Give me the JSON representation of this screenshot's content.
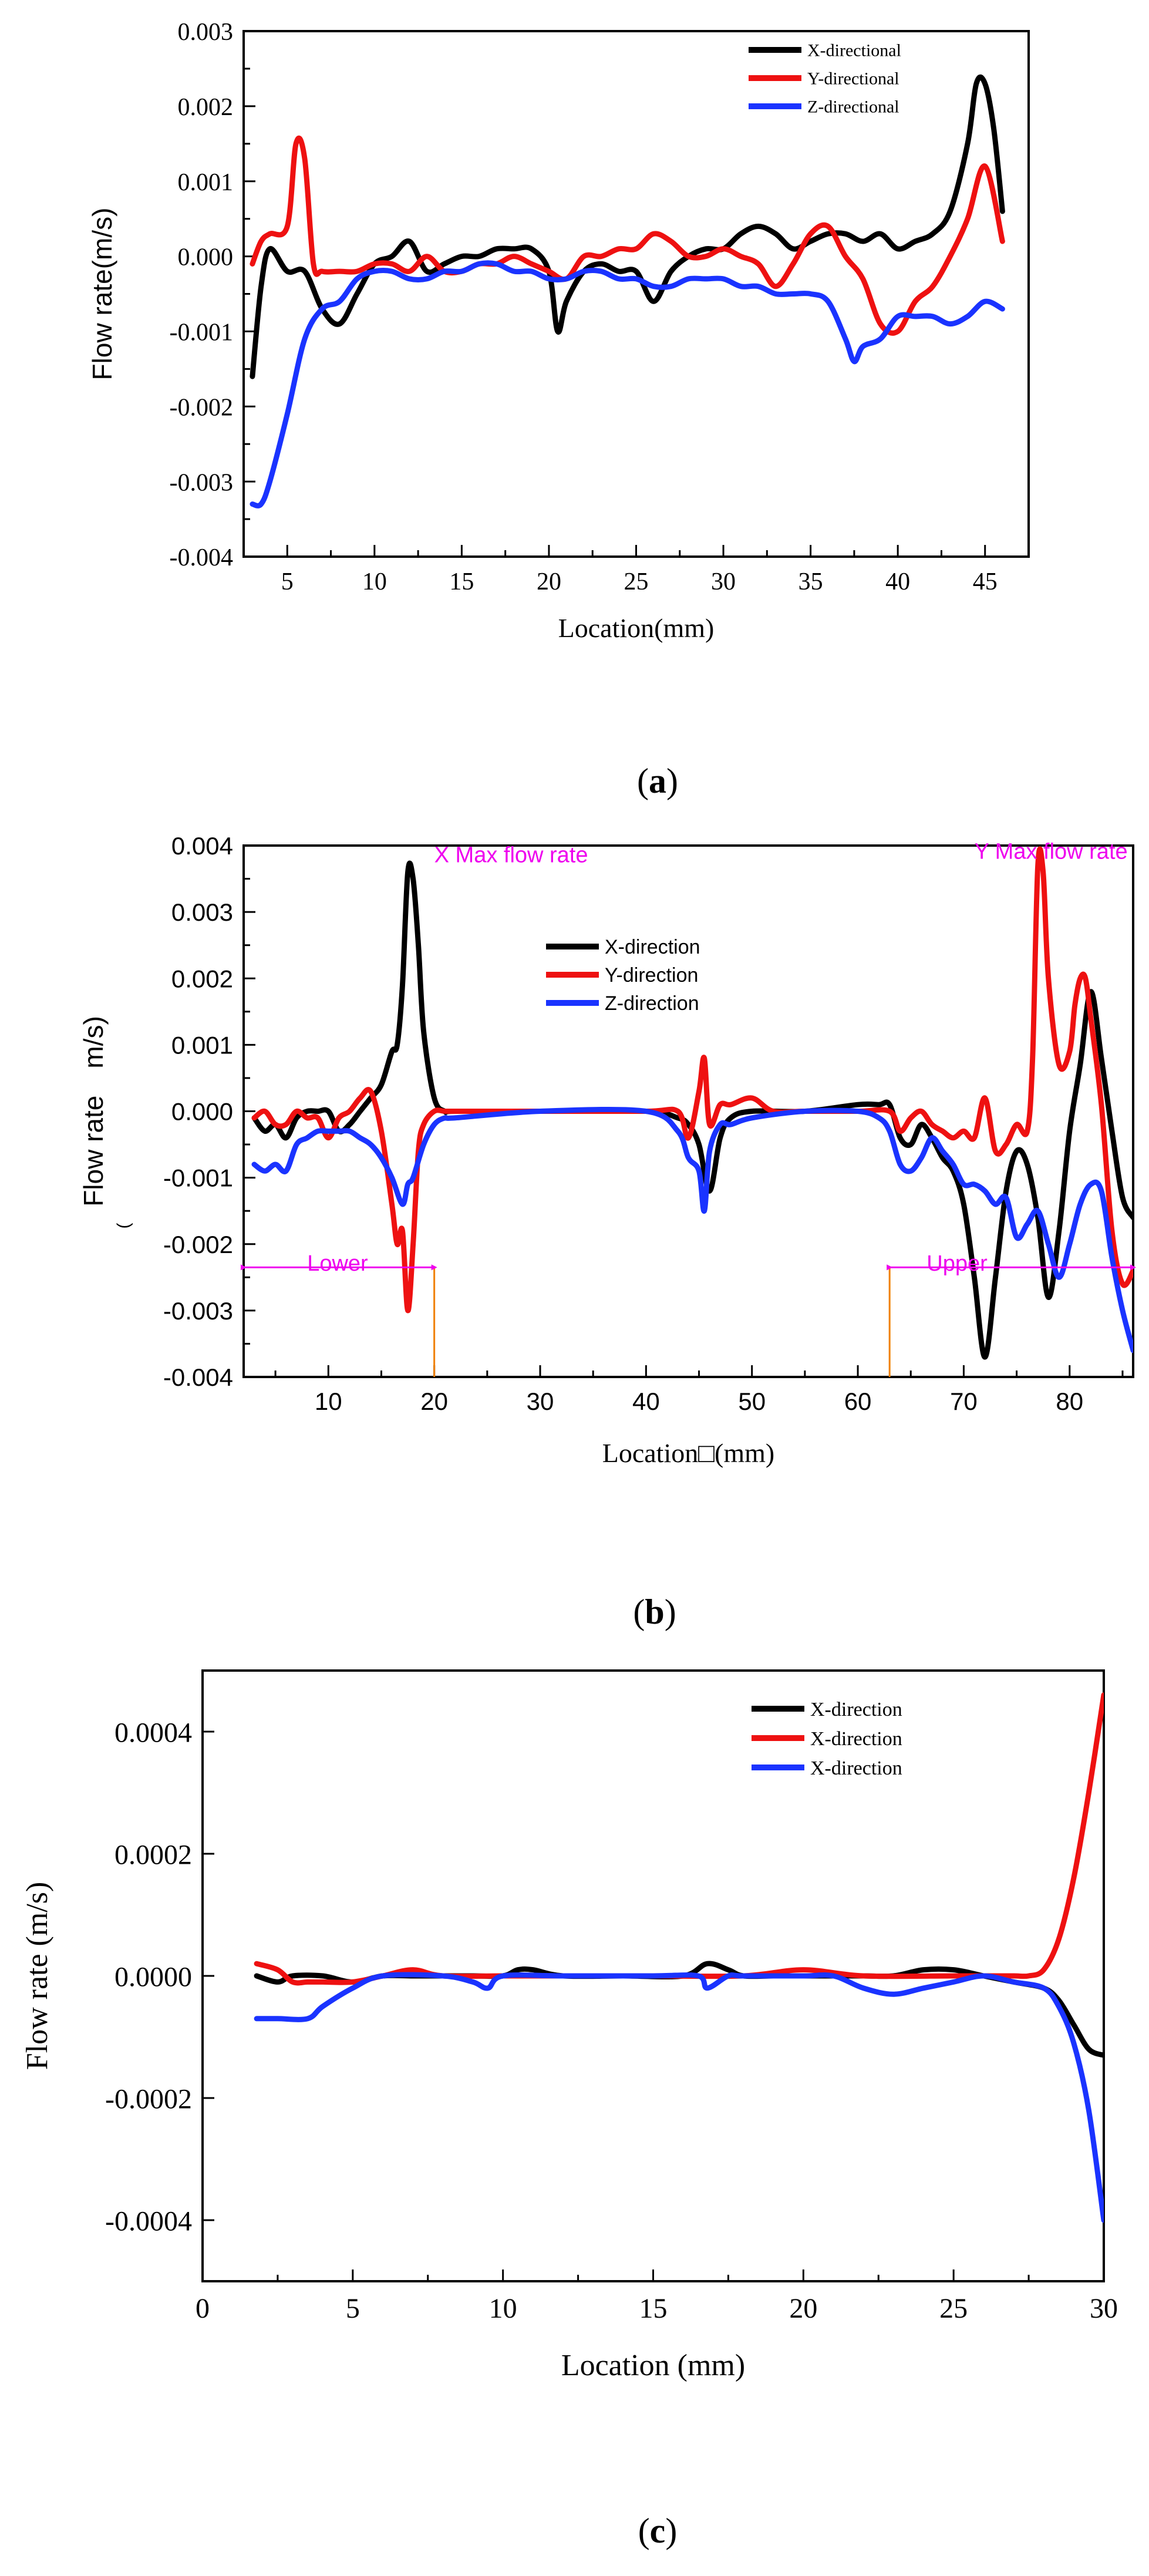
{
  "colors": {
    "x": "#000000",
    "y": "#ee1111",
    "z": "#1a33ff",
    "annot": "#ee00ee",
    "guide": "#f08000"
  },
  "chart_data": [
    {
      "id": "a",
      "type": "line",
      "caption": "(a)",
      "caption_letter": "a",
      "xlabel": "Location(mm)",
      "ylabel": "Flow rate(m/s)",
      "xlim": [
        2.5,
        47.5
      ],
      "ylim": [
        -0.004,
        0.003
      ],
      "xticks": [
        5,
        10,
        15,
        20,
        25,
        30,
        35,
        40,
        45
      ],
      "xtick_labels": [
        "5",
        "10",
        "15",
        "20",
        "25",
        "30",
        "35",
        "40",
        "45"
      ],
      "yticks": [
        -0.004,
        -0.003,
        -0.002,
        -0.001,
        0,
        0.001,
        0.002,
        0.003
      ],
      "ytick_labels": [
        "-0.004",
        "-0.003",
        "-0.002",
        "-0.001",
        "0.000",
        "0.001",
        "0.002",
        "0.003"
      ],
      "legend": {
        "position": "top-right"
      },
      "series": [
        {
          "name": "X-directional",
          "color": "x",
          "x": [
            3,
            3.5,
            4,
            5,
            6,
            7,
            8,
            9,
            10,
            11,
            12,
            13,
            14,
            15,
            16,
            17,
            18,
            19,
            20,
            20.5,
            21,
            22,
            23,
            24,
            25,
            26,
            27,
            28,
            29,
            30,
            31,
            32,
            33,
            34,
            35,
            36,
            37,
            38,
            39,
            40,
            41,
            42,
            43,
            44,
            44.5,
            45,
            45.5,
            46
          ],
          "y": [
            -0.0016,
            -0.0004,
            0.0001,
            -0.0002,
            -0.0002,
            -0.0007,
            -0.0009,
            -0.0005,
            -0.0001,
            0.0,
            0.0002,
            -0.0002,
            -0.0001,
            0.0,
            0.0,
            0.0001,
            0.0001,
            0.0001,
            -0.0002,
            -0.001,
            -0.0006,
            -0.0002,
            -0.0001,
            -0.0002,
            -0.0002,
            -0.0006,
            -0.0002,
            0.0,
            0.0001,
            0.0001,
            0.0003,
            0.0004,
            0.0003,
            0.0001,
            0.0002,
            0.0003,
            0.0003,
            0.0002,
            0.0003,
            0.0001,
            0.0002,
            0.0003,
            0.0006,
            0.0015,
            0.0023,
            0.0023,
            0.0017,
            0.0006
          ]
        },
        {
          "name": "Y-directional",
          "color": "y",
          "x": [
            3,
            3.5,
            4,
            5,
            5.5,
            6,
            6.5,
            7,
            8,
            9,
            10,
            11,
            12,
            13,
            14,
            15,
            16,
            17,
            18,
            19,
            20,
            21,
            22,
            23,
            24,
            25,
            26,
            27,
            28,
            29,
            30,
            31,
            32,
            33,
            34,
            35,
            36,
            37,
            38,
            39,
            40,
            41,
            42,
            43,
            44,
            45,
            46
          ],
          "y": [
            -0.0001,
            0.0002,
            0.0003,
            0.0004,
            0.0015,
            0.0013,
            -0.0001,
            -0.0002,
            -0.0002,
            -0.0002,
            -0.0001,
            -0.0001,
            -0.0002,
            0.0,
            -0.0002,
            -0.0002,
            -0.0001,
            -0.0001,
            0.0,
            -0.0001,
            -0.0002,
            -0.0003,
            0.0,
            0.0,
            0.0001,
            0.0001,
            0.0003,
            0.0002,
            0.0,
            0.0,
            0.0001,
            0.0,
            -0.0001,
            -0.0004,
            -0.0001,
            0.0003,
            0.0004,
            0.0,
            -0.0003,
            -0.0009,
            -0.001,
            -0.0006,
            -0.0004,
            0.0,
            0.0005,
            0.0012,
            0.0002
          ]
        },
        {
          "name": "Z-directional",
          "color": "z",
          "x": [
            3,
            3.5,
            4,
            5,
            6,
            7,
            8,
            9,
            10,
            11,
            12,
            13,
            14,
            15,
            16,
            17,
            18,
            19,
            20,
            21,
            22,
            23,
            24,
            25,
            26,
            27,
            28,
            29,
            30,
            31,
            32,
            33,
            34,
            35,
            36,
            37,
            37.5,
            38,
            39,
            40,
            41,
            42,
            43,
            44,
            45,
            46
          ],
          "y": [
            -0.0033,
            -0.0033,
            -0.003,
            -0.0021,
            -0.0011,
            -0.0007,
            -0.0006,
            -0.0003,
            -0.0002,
            -0.0002,
            -0.0003,
            -0.0003,
            -0.0002,
            -0.0002,
            -0.0001,
            -0.0001,
            -0.0002,
            -0.0002,
            -0.0003,
            -0.0003,
            -0.0002,
            -0.0002,
            -0.0003,
            -0.0003,
            -0.0004,
            -0.0004,
            -0.0003,
            -0.0003,
            -0.0003,
            -0.0004,
            -0.0004,
            -0.0005,
            -0.0005,
            -0.0005,
            -0.0006,
            -0.0011,
            -0.0014,
            -0.0012,
            -0.0011,
            -0.0008,
            -0.0008,
            -0.0008,
            -0.0009,
            -0.0008,
            -0.0006,
            -0.0007
          ]
        }
      ]
    },
    {
      "id": "b",
      "type": "line",
      "caption": "(b)",
      "caption_letter": "b",
      "xlabel": "Location□(mm)",
      "ylabel": "Flow rate  m/s)",
      "ylabel_paren": "(",
      "xlim": [
        2,
        86
      ],
      "ylim": [
        -0.004,
        0.004
      ],
      "xticks": [
        10,
        20,
        30,
        40,
        50,
        60,
        70,
        80
      ],
      "xtick_labels": [
        "10",
        "20",
        "30",
        "40",
        "50",
        "60",
        "70",
        "80"
      ],
      "yticks": [
        -0.004,
        -0.003,
        -0.002,
        -0.001,
        0,
        0.001,
        0.002,
        0.003,
        0.004
      ],
      "ytick_labels": [
        "-0.004",
        "-0.003",
        "-0.002",
        "-0.001",
        "0.000",
        "0.001",
        "0.002",
        "0.003",
        "0.004"
      ],
      "legend": {
        "position": "top-center"
      },
      "annotations": [
        {
          "text": "X Max flow rate",
          "x": 20,
          "y": 0.00375
        },
        {
          "text": "Y Max flow rate",
          "x": 71,
          "y": 0.0038
        },
        {
          "text": "Lower",
          "x": 8,
          "y": -0.0024
        },
        {
          "text": "Upper",
          "x": 66.5,
          "y": -0.0024
        }
      ],
      "guides": [
        20,
        63
      ],
      "regions": [
        {
          "name": "Lower",
          "from": 2,
          "to": 20,
          "y": -0.00235
        },
        {
          "name": "Upper",
          "from": 63,
          "to": 86,
          "y": -0.00235
        }
      ],
      "series": [
        {
          "name": "X-direction",
          "color": "x",
          "x": [
            3,
            4,
            5,
            6,
            7,
            8,
            9,
            10,
            11,
            12,
            13,
            14,
            15,
            16,
            16.5,
            17,
            17.5,
            18,
            18.5,
            19,
            20,
            21,
            22,
            30,
            40,
            43,
            44,
            45,
            46,
            47,
            48,
            50,
            55,
            60,
            62,
            63,
            64,
            65,
            66,
            67,
            68,
            69,
            70,
            71,
            72,
            73,
            74,
            75,
            76,
            77,
            78,
            79,
            80,
            81,
            82,
            83,
            84,
            85,
            86
          ],
          "y": [
            -0.0001,
            -0.0003,
            -0.0002,
            -0.0004,
            -0.0001,
            0.0,
            0.0,
            0.0,
            -0.0003,
            -0.0002,
            0.0,
            0.0002,
            0.0004,
            0.0009,
            0.001,
            0.0019,
            0.0036,
            0.0035,
            0.0025,
            0.0012,
            0.0002,
            0.0,
            0.0,
            0.0,
            0.0,
            -0.0001,
            -0.0002,
            -0.0005,
            -0.0012,
            -0.0004,
            -0.0001,
            0.0,
            0.0,
            0.0001,
            0.0001,
            0.0001,
            -0.0004,
            -0.0005,
            -0.0002,
            -0.0004,
            -0.0007,
            -0.0009,
            -0.0014,
            -0.0025,
            -0.0037,
            -0.0025,
            -0.0012,
            -0.0006,
            -0.0008,
            -0.0016,
            -0.0028,
            -0.0018,
            -0.0003,
            0.0007,
            0.0018,
            0.0008,
            -0.0003,
            -0.0013,
            -0.0016
          ]
        },
        {
          "name": "Y-direction",
          "color": "y",
          "x": [
            3,
            4,
            5,
            6,
            7,
            8,
            9,
            10,
            11,
            12,
            13,
            14,
            15,
            16,
            16.5,
            17,
            17.5,
            18,
            18.5,
            19,
            20,
            21,
            22,
            30,
            40,
            43,
            44,
            45,
            45.5,
            46,
            47,
            48,
            50,
            52,
            55,
            60,
            63,
            64,
            65,
            66,
            67,
            68,
            69,
            70,
            71,
            72,
            73,
            74,
            75,
            76,
            76.5,
            77,
            77.5,
            78,
            79,
            80,
            80.5,
            81,
            81.5,
            82,
            83,
            84,
            85,
            86
          ],
          "y": [
            -0.0001,
            0.0,
            -0.0002,
            -0.0002,
            0.0,
            -0.0001,
            -0.0001,
            -0.0004,
            -0.0001,
            0.0,
            0.0002,
            0.0003,
            -0.0003,
            -0.0014,
            -0.002,
            -0.0018,
            -0.003,
            -0.002,
            -0.0006,
            -0.0002,
            0.0,
            0.0,
            0.0,
            0.0,
            0.0,
            0.0,
            -0.0004,
            0.0003,
            0.0008,
            -0.0002,
            0.0001,
            0.0001,
            0.0002,
            0.0,
            0.0,
            0.0,
            0.0,
            -0.0003,
            -0.0001,
            0.0,
            -0.0002,
            -0.0003,
            -0.0004,
            -0.0003,
            -0.0004,
            0.0002,
            -0.0006,
            -0.0005,
            -0.0002,
            -0.0003,
            0.0008,
            0.0037,
            0.0036,
            0.002,
            0.0007,
            0.0009,
            0.0016,
            0.002,
            0.002,
            0.0014,
            0.0001,
            -0.0018,
            -0.0026,
            -0.0024
          ]
        },
        {
          "name": "Z-direction",
          "color": "z",
          "x": [
            3,
            4,
            5,
            6,
            7,
            8,
            9,
            10,
            11,
            12,
            13,
            14,
            15,
            16,
            17,
            17.5,
            18,
            19,
            20,
            21,
            22,
            30,
            40,
            43,
            44,
            45,
            45.5,
            46,
            47,
            48,
            50,
            55,
            60,
            62,
            63,
            64,
            65,
            66,
            67,
            68,
            69,
            70,
            71,
            72,
            73,
            74,
            75,
            76,
            77,
            78,
            79,
            80,
            81,
            82,
            83,
            84,
            85,
            86
          ],
          "y": [
            -0.0008,
            -0.0009,
            -0.0008,
            -0.0009,
            -0.0005,
            -0.0004,
            -0.0003,
            -0.0003,
            -0.0003,
            -0.0003,
            -0.0004,
            -0.0005,
            -0.0007,
            -0.001,
            -0.0014,
            -0.0011,
            -0.001,
            -0.0005,
            -0.0002,
            -0.0001,
            -0.0001,
            0.0,
            0.0,
            -0.0003,
            -0.0007,
            -0.0009,
            -0.0015,
            -0.0006,
            -0.0002,
            -0.0002,
            -0.0001,
            0.0,
            0.0,
            -0.0001,
            -0.0003,
            -0.0008,
            -0.0009,
            -0.0007,
            -0.0004,
            -0.0006,
            -0.0008,
            -0.0011,
            -0.0011,
            -0.0012,
            -0.0014,
            -0.0013,
            -0.0019,
            -0.0017,
            -0.0015,
            -0.002,
            -0.0025,
            -0.002,
            -0.0014,
            -0.0011,
            -0.0012,
            -0.0022,
            -0.003,
            -0.0036
          ]
        }
      ]
    },
    {
      "id": "c",
      "type": "line",
      "caption": "(c)",
      "caption_letter": "c",
      "xlabel": "Location  (mm)",
      "ylabel": "Flow rate (m/s)",
      "xlim": [
        0,
        30
      ],
      "ylim": [
        -0.0005,
        0.0005
      ],
      "xticks": [
        0,
        5,
        10,
        15,
        20,
        25,
        30
      ],
      "xtick_labels": [
        "0",
        "5",
        "10",
        "15",
        "20",
        "25",
        "30"
      ],
      "yticks": [
        -0.0004,
        -0.0002,
        0,
        0.0002,
        0.0004
      ],
      "ytick_labels": [
        "-0.0004",
        "-0.0002",
        "0.0000",
        "0.0002",
        "0.0004"
      ],
      "legend": {
        "position": "top-right"
      },
      "series": [
        {
          "name": "X-direction",
          "color": "x",
          "x": [
            1.8,
            2.5,
            3,
            4,
            5,
            6,
            7,
            8,
            9,
            10,
            10.5,
            11,
            12,
            14,
            16,
            16.8,
            17.5,
            18,
            19,
            20,
            21,
            22,
            23,
            24,
            25,
            26,
            27,
            28,
            28.5,
            29,
            29.5,
            30
          ],
          "y": [
            0.0,
            -1e-05,
            0.0,
            0.0,
            -1e-05,
            0.0,
            0.0,
            0.0,
            0.0,
            0.0,
            1e-05,
            1e-05,
            0.0,
            0.0,
            0.0,
            2e-05,
            1e-05,
            0.0,
            0.0,
            0.0,
            0.0,
            0.0,
            0.0,
            1e-05,
            1e-05,
            0.0,
            -1e-05,
            -2e-05,
            -4e-05,
            -8e-05,
            -0.00012,
            -0.00013
          ]
        },
        {
          "name": "X-direction",
          "color": "y",
          "x": [
            1.8,
            2.5,
            3,
            3.5,
            4,
            5,
            6,
            7,
            8,
            10,
            12,
            15,
            18,
            20,
            22,
            25,
            26,
            27,
            27.5,
            28,
            28.5,
            29,
            29.5,
            30
          ],
          "y": [
            2e-05,
            1e-05,
            -1e-05,
            -1e-05,
            -1e-05,
            -1e-05,
            0.0,
            1e-05,
            0.0,
            0.0,
            0.0,
            0.0,
            0.0,
            1e-05,
            0.0,
            0.0,
            0.0,
            0.0,
            0.0,
            1e-05,
            6e-05,
            0.00016,
            0.0003,
            0.00046
          ]
        },
        {
          "name": "X-direction",
          "color": "z",
          "x": [
            1.8,
            2.5,
            3.5,
            4,
            5,
            6,
            8,
            9,
            9.5,
            10,
            12,
            15,
            16.5,
            16.8,
            17.5,
            18,
            20,
            21,
            22,
            23,
            24,
            25,
            26,
            27,
            28,
            28.5,
            29,
            29.5,
            30
          ],
          "y": [
            -7e-05,
            -7e-05,
            -7e-05,
            -5e-05,
            -2e-05,
            0.0,
            0.0,
            -1e-05,
            -2e-05,
            0.0,
            0.0,
            0.0,
            0.0,
            -2e-05,
            0.0,
            0.0,
            0.0,
            0.0,
            -2e-05,
            -3e-05,
            -2e-05,
            -1e-05,
            0.0,
            -1e-05,
            -2e-05,
            -5e-05,
            -0.00011,
            -0.00022,
            -0.0004
          ]
        }
      ]
    }
  ]
}
